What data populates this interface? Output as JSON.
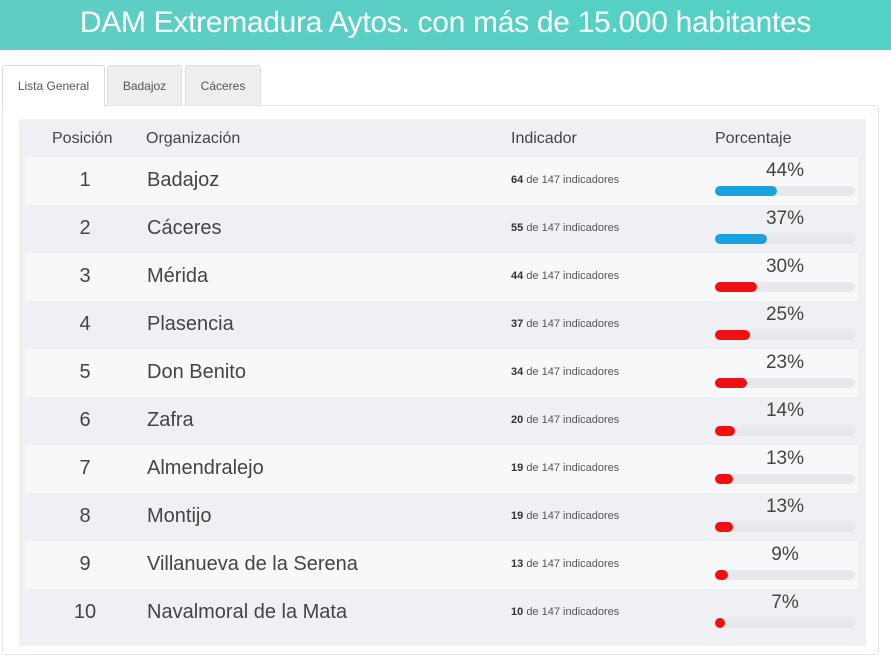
{
  "header": {
    "title": "DAM Extremadura Aytos. con más de 15.000 habitantes"
  },
  "tabs": [
    {
      "label": "Lista General",
      "active": true
    },
    {
      "label": "Badajoz",
      "active": false
    },
    {
      "label": "Cáceres",
      "active": false
    }
  ],
  "table": {
    "columns": [
      "Posición",
      "Organización",
      "Indicador",
      "Porcentaje"
    ],
    "indicator_suffix": "de 147 indicadores",
    "colors": {
      "high": "#1ba1dc",
      "low": "#f20f0f"
    },
    "rows": [
      {
        "position": "1",
        "organization": "Badajoz",
        "count": "64",
        "percent": "44%",
        "fraction": 0.44,
        "level": "high"
      },
      {
        "position": "2",
        "organization": "Cáceres",
        "count": "55",
        "percent": "37%",
        "fraction": 0.37,
        "level": "high"
      },
      {
        "position": "3",
        "organization": "Mérida",
        "count": "44",
        "percent": "30%",
        "fraction": 0.3,
        "level": "low"
      },
      {
        "position": "4",
        "organization": "Plasencia",
        "count": "37",
        "percent": "25%",
        "fraction": 0.25,
        "level": "low"
      },
      {
        "position": "5",
        "organization": "Don Benito",
        "count": "34",
        "percent": "23%",
        "fraction": 0.23,
        "level": "low"
      },
      {
        "position": "6",
        "organization": "Zafra",
        "count": "20",
        "percent": "14%",
        "fraction": 0.14,
        "level": "low"
      },
      {
        "position": "7",
        "organization": "Almendralejo",
        "count": "19",
        "percent": "13%",
        "fraction": 0.13,
        "level": "low"
      },
      {
        "position": "8",
        "organization": "Montijo",
        "count": "19",
        "percent": "13%",
        "fraction": 0.13,
        "level": "low"
      },
      {
        "position": "9",
        "organization": "Villanueva de la Serena",
        "count": "13",
        "percent": "9%",
        "fraction": 0.09,
        "level": "low"
      },
      {
        "position": "10",
        "organization": "Navalmoral de la Mata",
        "count": "10",
        "percent": "7%",
        "fraction": 0.07,
        "level": "low"
      }
    ]
  }
}
